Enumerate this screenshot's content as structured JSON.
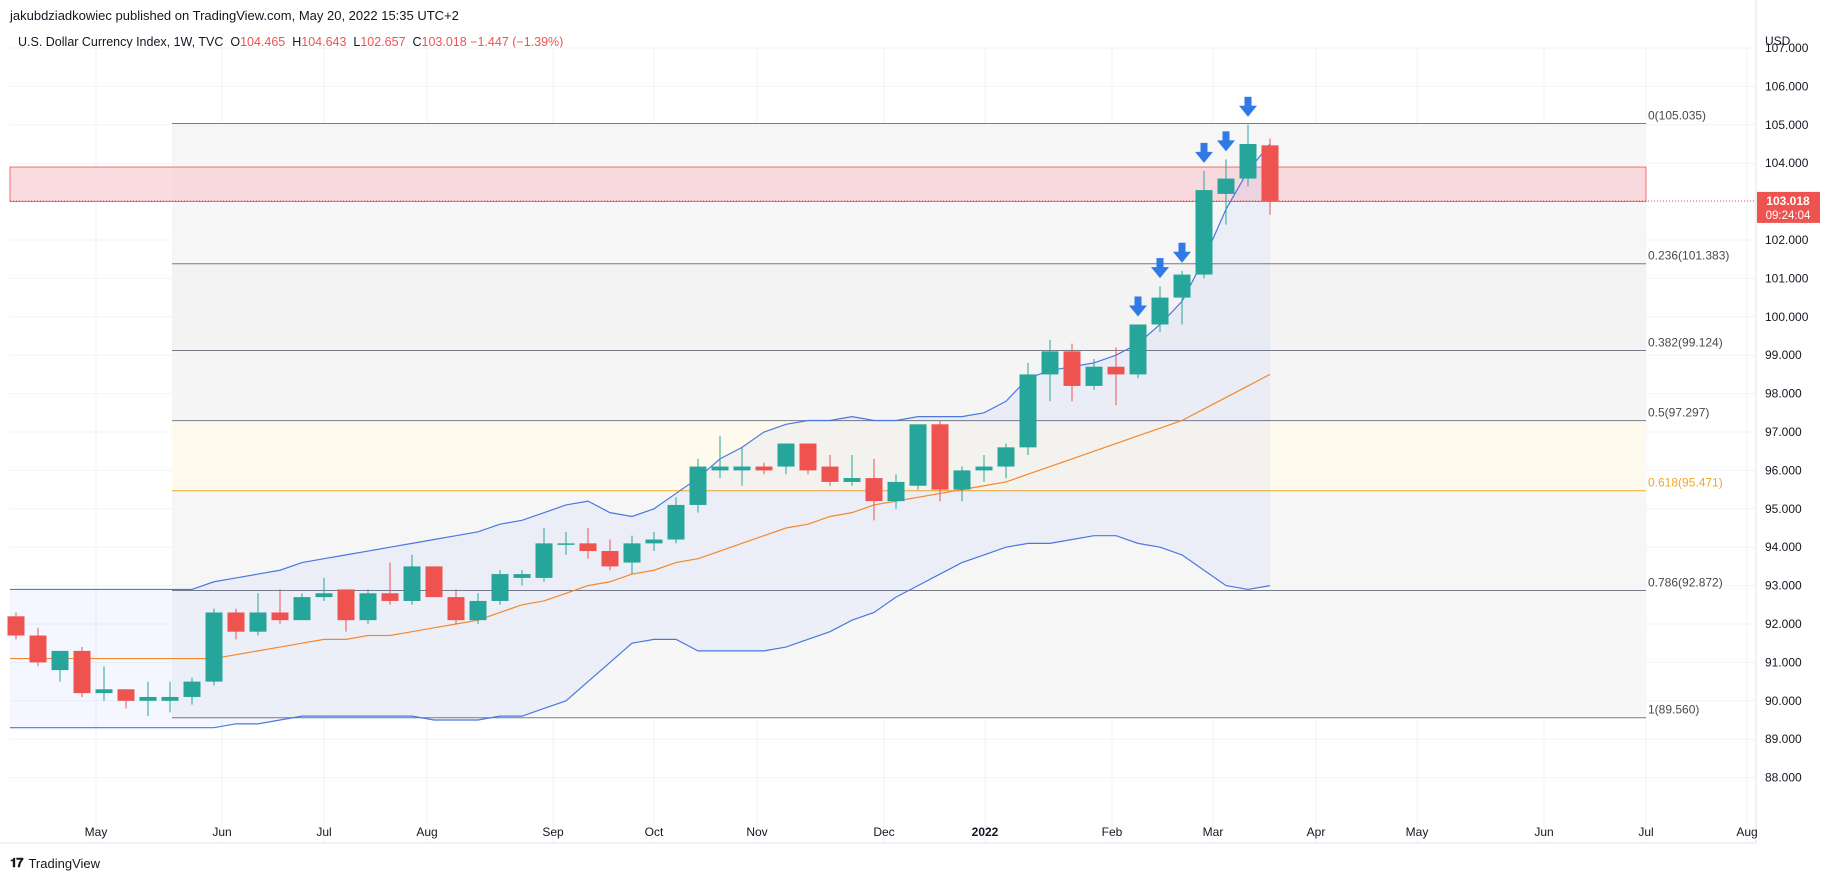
{
  "header": {
    "publisher": "jakubdziadkowiec published on TradingView.com, May 20, 2022 15:35 UTC+2"
  },
  "legend": {
    "symbol": "U.S. Dollar Currency Index, 1W, TVC",
    "o_label": "O",
    "o_value": "104.465",
    "h_label": "H",
    "h_value": "104.643",
    "l_label": "L",
    "l_value": "102.657",
    "c_label": "C",
    "c_value": "103.018",
    "change": "−1.447 (−1.39%)"
  },
  "footer": {
    "brand": "TradingView"
  },
  "colors": {
    "up": "#26a69a",
    "down": "#ef5350",
    "bollinger": "#4a78e0",
    "ma": "#f5882a",
    "fib_gold": "#f5a623",
    "arrow": "#2f7ae5",
    "zone": "#f8cfd6",
    "price_tag": "#ef5350"
  },
  "chart_data": {
    "type": "candlestick",
    "currency": "USD",
    "y_ticks": [
      "107.000",
      "106.000",
      "105.000",
      "104.000",
      "103.000",
      "102.000",
      "101.000",
      "100.000",
      "99.000",
      "98.000",
      "97.000",
      "96.000",
      "95.000",
      "94.000",
      "93.000",
      "92.000",
      "91.000",
      "90.000",
      "89.000",
      "88.000"
    ],
    "x_ticks": [
      "May",
      "Jun",
      "Jul",
      "Aug",
      "Sep",
      "Oct",
      "Nov",
      "Dec",
      "2022",
      "Feb",
      "Mar",
      "Apr",
      "May",
      "Jun",
      "Jul",
      "Aug"
    ],
    "last_price": "103.018",
    "countdown": "09:24:04",
    "fib_levels": [
      {
        "label": "0(105.035)",
        "value": 105.035
      },
      {
        "label": "0.236(101.383)",
        "value": 101.383
      },
      {
        "label": "0.382(99.124)",
        "value": 99.124
      },
      {
        "label": "0.5(97.297)",
        "value": 97.297
      },
      {
        "label": "0.618(95.471)",
        "value": 95.471
      },
      {
        "label": "0.786(92.872)",
        "value": 92.872
      },
      {
        "label": "1(89.560)",
        "value": 89.56
      }
    ],
    "resistance_zone": [
      103.0,
      103.9
    ],
    "candles": [
      {
        "o": 92.2,
        "h": 92.3,
        "l": 91.6,
        "c": 91.7
      },
      {
        "o": 91.7,
        "h": 91.9,
        "l": 90.9,
        "c": 91.0
      },
      {
        "o": 90.8,
        "h": 91.3,
        "l": 90.5,
        "c": 91.3
      },
      {
        "o": 91.3,
        "h": 91.4,
        "l": 90.1,
        "c": 90.2
      },
      {
        "o": 90.2,
        "h": 90.9,
        "l": 90.0,
        "c": 90.3
      },
      {
        "o": 90.3,
        "h": 90.3,
        "l": 89.8,
        "c": 90.0
      },
      {
        "o": 90.0,
        "h": 90.5,
        "l": 89.6,
        "c": 90.1
      },
      {
        "o": 90.0,
        "h": 90.5,
        "l": 89.7,
        "c": 90.1
      },
      {
        "o": 90.1,
        "h": 90.6,
        "l": 89.9,
        "c": 90.5
      },
      {
        "o": 90.5,
        "h": 92.4,
        "l": 90.4,
        "c": 92.3
      },
      {
        "o": 92.3,
        "h": 92.4,
        "l": 91.6,
        "c": 91.8
      },
      {
        "o": 91.8,
        "h": 92.8,
        "l": 91.7,
        "c": 92.3
      },
      {
        "o": 92.3,
        "h": 92.9,
        "l": 92.0,
        "c": 92.1
      },
      {
        "o": 92.1,
        "h": 92.8,
        "l": 92.1,
        "c": 92.7
      },
      {
        "o": 92.7,
        "h": 93.2,
        "l": 92.6,
        "c": 92.8
      },
      {
        "o": 92.9,
        "h": 92.9,
        "l": 91.8,
        "c": 92.1
      },
      {
        "o": 92.1,
        "h": 92.9,
        "l": 92.0,
        "c": 92.8
      },
      {
        "o": 92.8,
        "h": 93.6,
        "l": 92.5,
        "c": 92.6
      },
      {
        "o": 92.6,
        "h": 93.8,
        "l": 92.5,
        "c": 93.5
      },
      {
        "o": 93.5,
        "h": 93.5,
        "l": 92.7,
        "c": 92.7
      },
      {
        "o": 92.7,
        "h": 92.9,
        "l": 92.0,
        "c": 92.1
      },
      {
        "o": 92.1,
        "h": 92.8,
        "l": 92.0,
        "c": 92.6
      },
      {
        "o": 92.6,
        "h": 93.4,
        "l": 92.5,
        "c": 93.3
      },
      {
        "o": 93.2,
        "h": 93.4,
        "l": 93.0,
        "c": 93.3
      },
      {
        "o": 93.2,
        "h": 94.5,
        "l": 93.1,
        "c": 94.1
      },
      {
        "o": 94.1,
        "h": 94.4,
        "l": 93.8,
        "c": 94.1
      },
      {
        "o": 94.1,
        "h": 94.5,
        "l": 93.7,
        "c": 93.9
      },
      {
        "o": 93.9,
        "h": 94.2,
        "l": 93.4,
        "c": 93.5
      },
      {
        "o": 93.6,
        "h": 94.3,
        "l": 93.3,
        "c": 94.1
      },
      {
        "o": 94.1,
        "h": 94.4,
        "l": 93.9,
        "c": 94.2
      },
      {
        "o": 94.2,
        "h": 95.3,
        "l": 94.1,
        "c": 95.1
      },
      {
        "o": 95.1,
        "h": 96.3,
        "l": 94.9,
        "c": 96.1
      },
      {
        "o": 96.0,
        "h": 96.9,
        "l": 95.8,
        "c": 96.1
      },
      {
        "o": 96.0,
        "h": 96.6,
        "l": 95.6,
        "c": 96.1
      },
      {
        "o": 96.1,
        "h": 96.2,
        "l": 95.9,
        "c": 96.0
      },
      {
        "o": 96.1,
        "h": 96.7,
        "l": 95.9,
        "c": 96.7
      },
      {
        "o": 96.7,
        "h": 96.7,
        "l": 95.9,
        "c": 96.0
      },
      {
        "o": 96.1,
        "h": 96.4,
        "l": 95.6,
        "c": 95.7
      },
      {
        "o": 95.7,
        "h": 96.4,
        "l": 95.6,
        "c": 95.8
      },
      {
        "o": 95.8,
        "h": 96.3,
        "l": 94.7,
        "c": 95.2
      },
      {
        "o": 95.2,
        "h": 95.9,
        "l": 95.0,
        "c": 95.7
      },
      {
        "o": 95.6,
        "h": 97.2,
        "l": 95.5,
        "c": 97.2
      },
      {
        "o": 97.2,
        "h": 97.3,
        "l": 95.2,
        "c": 95.5
      },
      {
        "o": 95.5,
        "h": 96.1,
        "l": 95.2,
        "c": 96.0
      },
      {
        "o": 96.0,
        "h": 96.4,
        "l": 95.7,
        "c": 96.1
      },
      {
        "o": 96.1,
        "h": 96.7,
        "l": 95.8,
        "c": 96.6
      },
      {
        "o": 96.6,
        "h": 98.8,
        "l": 96.4,
        "c": 98.5
      },
      {
        "o": 98.5,
        "h": 99.4,
        "l": 97.8,
        "c": 99.1
      },
      {
        "o": 99.1,
        "h": 99.3,
        "l": 97.8,
        "c": 98.2
      },
      {
        "o": 98.2,
        "h": 98.9,
        "l": 98.1,
        "c": 98.7
      },
      {
        "o": 98.7,
        "h": 99.2,
        "l": 97.7,
        "c": 98.5
      },
      {
        "o": 98.5,
        "h": 99.8,
        "l": 98.4,
        "c": 99.8
      },
      {
        "o": 99.8,
        "h": 100.8,
        "l": 99.6,
        "c": 100.5
      },
      {
        "o": 100.5,
        "h": 101.2,
        "l": 99.8,
        "c": 101.1
      },
      {
        "o": 101.1,
        "h": 103.8,
        "l": 101.0,
        "c": 103.3
      },
      {
        "o": 103.2,
        "h": 104.1,
        "l": 102.4,
        "c": 103.6
      },
      {
        "o": 103.6,
        "h": 105.0,
        "l": 103.4,
        "c": 104.5
      },
      {
        "o": 104.465,
        "h": 104.643,
        "l": 102.657,
        "c": 103.018
      }
    ],
    "bb_upper": [
      92.9,
      92.9,
      92.9,
      92.9,
      92.9,
      92.9,
      92.9,
      92.9,
      92.9,
      93.1,
      93.2,
      93.3,
      93.4,
      93.6,
      93.7,
      93.8,
      93.9,
      94.0,
      94.1,
      94.2,
      94.3,
      94.4,
      94.6,
      94.7,
      94.9,
      95.1,
      95.2,
      94.9,
      94.8,
      95.0,
      95.4,
      95.8,
      96.3,
      96.6,
      97.0,
      97.2,
      97.3,
      97.3,
      97.4,
      97.3,
      97.3,
      97.4,
      97.4,
      97.4,
      97.5,
      97.8,
      98.4,
      98.6,
      98.7,
      98.8,
      99.0,
      99.3,
      99.8,
      100.4,
      101.5,
      102.8,
      103.8,
      104.5
    ],
    "bb_lower": [
      89.3,
      89.3,
      89.3,
      89.3,
      89.3,
      89.3,
      89.3,
      89.3,
      89.3,
      89.3,
      89.4,
      89.4,
      89.5,
      89.6,
      89.6,
      89.6,
      89.6,
      89.6,
      89.6,
      89.5,
      89.5,
      89.5,
      89.6,
      89.6,
      89.8,
      90.0,
      90.5,
      91.0,
      91.5,
      91.6,
      91.6,
      91.3,
      91.3,
      91.3,
      91.3,
      91.4,
      91.6,
      91.8,
      92.1,
      92.3,
      92.7,
      93.0,
      93.3,
      93.6,
      93.8,
      94.0,
      94.1,
      94.1,
      94.2,
      94.3,
      94.3,
      94.1,
      94.0,
      93.8,
      93.4,
      93.0,
      92.9,
      93.0
    ],
    "ma": [
      91.1,
      91.1,
      91.1,
      91.1,
      91.1,
      91.1,
      91.1,
      91.1,
      91.1,
      91.1,
      91.2,
      91.3,
      91.4,
      91.5,
      91.6,
      91.6,
      91.7,
      91.7,
      91.8,
      91.9,
      92.0,
      92.1,
      92.3,
      92.5,
      92.6,
      92.8,
      93.0,
      93.1,
      93.3,
      93.4,
      93.6,
      93.7,
      93.9,
      94.1,
      94.3,
      94.5,
      94.6,
      94.8,
      94.9,
      95.1,
      95.2,
      95.3,
      95.4,
      95.5,
      95.6,
      95.7,
      95.9,
      96.1,
      96.3,
      96.5,
      96.7,
      96.9,
      97.1,
      97.3,
      97.6,
      97.9,
      98.2,
      98.5
    ],
    "arrows_at_candles": [
      51,
      52,
      53,
      54,
      55,
      56
    ]
  }
}
